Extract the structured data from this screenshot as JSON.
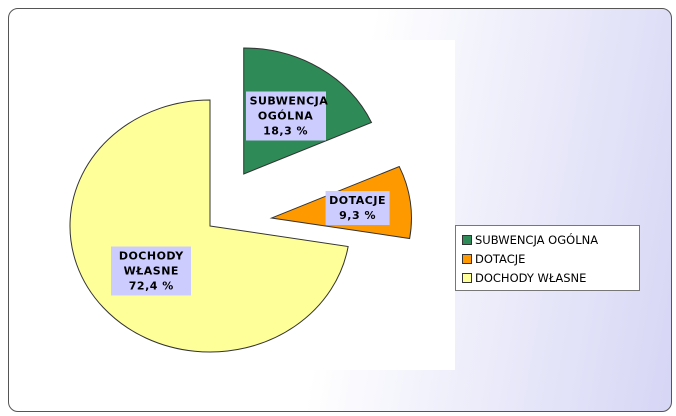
{
  "chart_data": {
    "type": "pie",
    "categories": [
      "SUBWENCJA OGÓLNA",
      "DOTACJE",
      "DOCHODY WŁASNE"
    ],
    "values": [
      18.3,
      9.3,
      72.4
    ],
    "value_labels": [
      "18,3 %",
      "9,3 %",
      "72,4 %"
    ],
    "colors": [
      "#2e8b57",
      "#ff9900",
      "#ffff99"
    ],
    "legend": "right"
  }
}
